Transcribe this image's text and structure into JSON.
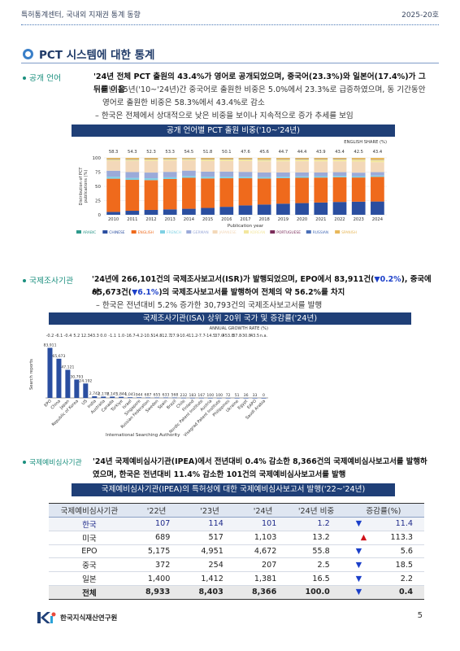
{
  "header": {
    "left": "특허통계센터, 국내외 지재권 통계 동향",
    "right": "2025-20호"
  },
  "section": {
    "title": "PCT 시스템에 대한 통계"
  },
  "lang": {
    "bullet": "공개 언어",
    "para": "'24년 전체 PCT 출원의 43.4%가 영어로 공개되었으며, 중국어(23.3%)와 일본어(17.4%)가 그 뒤를 이음",
    "sub1a": "– 지난 15년('10~'24년)간 중국어로 출원한 비중은 5.0%에서 23.3%로 급증하였으며, 동 기간동안",
    "sub1b": "영어로 출원한 비중은 58.3%에서 43.4%로 감소",
    "sub2": "– 한국은 전체에서 상대적으로 낮은 비중을 보이나 지속적으로 증가 추세를 보임",
    "banner": "공개 언어별 PCT 출원 비중('10~'24년)"
  },
  "chart1": {
    "type": "bar",
    "title": "ENGLISH SHARE (%)",
    "ylabel": "Distribution of PCT publications (%)",
    "xlabel": "Publication year",
    "yticks": [
      "0",
      "25",
      "50",
      "75",
      "100"
    ],
    "categories": [
      "2010",
      "2011",
      "2012",
      "2013",
      "2014",
      "2015",
      "2016",
      "2017",
      "2018",
      "2019",
      "2020",
      "2021",
      "2022",
      "2023",
      "2024"
    ],
    "english_share": [
      "58.3",
      "54.3",
      "52.3",
      "53.3",
      "54.5",
      "51.8",
      "50.1",
      "47.6",
      "45.6",
      "44.7",
      "44.4",
      "43.9",
      "43.4",
      "42.5",
      "43.4"
    ],
    "series": [
      {
        "name": "ARABIC",
        "color": "#2f9a8c",
        "values": [
          0.1,
          0.1,
          0.1,
          0.1,
          0.1,
          0.1,
          0.1,
          0.1,
          0.1,
          0.1,
          0.1,
          0.1,
          0.1,
          0.1,
          0.1
        ]
      },
      {
        "name": "CHINESE",
        "color": "#2a4ea0",
        "values": [
          5.0,
          7.0,
          8.5,
          9.5,
          10.5,
          12.0,
          14.0,
          16.5,
          18.0,
          19.5,
          20.5,
          21.5,
          22.5,
          23.0,
          23.3
        ]
      },
      {
        "name": "ENGLISH",
        "color": "#ef6a1c",
        "values": [
          58.3,
          54.3,
          52.3,
          53.3,
          54.5,
          51.8,
          50.1,
          47.6,
          45.6,
          44.7,
          44.4,
          43.9,
          43.4,
          42.5,
          43.4
        ]
      },
      {
        "name": "FRENCH",
        "color": "#7fd1e4",
        "values": [
          3.5,
          3.4,
          3.3,
          3.0,
          3.0,
          3.0,
          2.8,
          2.7,
          2.6,
          2.6,
          2.5,
          2.4,
          2.4,
          2.3,
          2.2
        ]
      },
      {
        "name": "GERMAN",
        "color": "#9baad9",
        "values": [
          10.5,
          10.3,
          10.0,
          9.5,
          9.5,
          9.0,
          9.0,
          8.5,
          8.0,
          7.5,
          7.0,
          6.5,
          6.5,
          6.2,
          6.0
        ]
      },
      {
        "name": "JAPANESE",
        "color": "#f3d8b9",
        "values": [
          17.5,
          19.5,
          20.5,
          20.0,
          18.0,
          18.5,
          18.5,
          19.0,
          19.5,
          19.5,
          19.5,
          19.5,
          19.0,
          19.5,
          17.4
        ]
      },
      {
        "name": "KOREAN",
        "color": "#f3e79f",
        "values": [
          2.0,
          2.2,
          2.4,
          2.5,
          2.5,
          2.7,
          2.8,
          2.9,
          3.0,
          3.1,
          3.2,
          3.3,
          3.4,
          3.5,
          4.0
        ]
      },
      {
        "name": "PORTUGUESE",
        "color": "#7b2c5a",
        "values": [
          0.1,
          0.1,
          0.1,
          0.1,
          0.1,
          0.1,
          0.1,
          0.1,
          0.1,
          0.1,
          0.1,
          0.1,
          0.1,
          0.1,
          0.1
        ]
      },
      {
        "name": "RUSSIAN",
        "color": "#4a6fb8",
        "values": [
          0.6,
          0.6,
          0.5,
          0.5,
          0.5,
          0.5,
          0.5,
          0.5,
          0.5,
          0.5,
          0.5,
          0.5,
          0.5,
          0.4,
          0.4
        ]
      },
      {
        "name": "SPANISH",
        "color": "#e8b85a",
        "values": [
          2.4,
          2.5,
          2.3,
          1.5,
          1.3,
          2.3,
          2.1,
          2.1,
          2.6,
          2.4,
          2.2,
          2.3,
          2.1,
          2.5,
          3.2
        ]
      }
    ]
  },
  "isa": {
    "bullet": "국제조사기관",
    "para1a": "'24년에 266,101건의 국제조사보고서(ISR)가 발행되었으며, EPO에서 83,911건(",
    "para1b": "▼0.2%",
    "para1c": "), 중국에서",
    "para2a": "65,673건(",
    "para2b": "▼6.1%",
    "para2c": ")의 국제조사보고서를 발행하여 전체의 약 56.2%를 차지",
    "sub": "– 한국은 전년대비 5.2% 증가한 30,793건의 국제조사보고서를 발행",
    "banner": "국제조사기관(ISA) 상위 20위 국가 및 증감률('24년)"
  },
  "chart2": {
    "type": "bar",
    "title": "ANNUAL GROWTH RATE (%)",
    "ylabel": "Search reports",
    "xlabel": "International Searching Authority",
    "categories": [
      "EPO",
      "China",
      "Japan",
      "Republic of Korea",
      "US",
      "India",
      "Australia",
      "Canada",
      "Türkiye",
      "Israel",
      "Singapore",
      "Russian Federation",
      "Sweden",
      "Spain",
      "Brazil",
      "Chile",
      "Finland",
      "Nordic Patent Institute",
      "Austria",
      "Visegrad Patent Institute",
      "Philippines",
      "Ukraine",
      "Egypt",
      "EAPO",
      "Saudi Arabia"
    ],
    "values": [
      83911,
      65673,
      47121,
      30793,
      24192,
      2742,
      2178,
      2145,
      1844,
      1041,
      944,
      687,
      655,
      633,
      568,
      232,
      183,
      167,
      100,
      100,
      72,
      51,
      36,
      33,
      0
    ],
    "value_labels": [
      "83,911",
      "65,673",
      "47,121",
      "30,793",
      "24,192",
      "2,742",
      "2,178",
      "2,145",
      "1,844",
      "1,041",
      "944",
      "687",
      "655",
      "633",
      "568",
      "232",
      "183",
      "167",
      "100",
      "100",
      "72",
      "51",
      "36",
      "33",
      "0"
    ],
    "growth": [
      "-0.2",
      "-6.1",
      "-0.4",
      "5.2",
      "12.3",
      "43.3",
      "0.0",
      "-1.1",
      "1.0",
      "-16.7",
      "-4.2",
      "-10.5",
      "-14.8",
      "-12.7",
      "27.9",
      "-10.4",
      "-11.2",
      "-7.7",
      "-14.5",
      "37.0",
      "453.8",
      "37.8",
      "-30.8",
      "43.5",
      "n.a."
    ],
    "color": "#2a4ea0"
  },
  "ipea": {
    "bullet": "국제예비심사기관",
    "para1": "'24년 국제예비심사기관(IPEA)에서 전년대비 0.4% 감소한 8,366건의 국제예비심사보고서를 발행하",
    "para2": "였으며, 한국은 전년대비 11.4% 감소한 101건의 국제예비심사보고서를 발행",
    "banner": "국제예비심사기관(IPEA)의 특허성에 대한 국제예비심사보고서 발행('22~'24년)"
  },
  "table": {
    "headers": [
      "국제예비심사기관",
      "'22년",
      "'23년",
      "'24년",
      "'24년 비중",
      "증감률(%)"
    ],
    "rows": [
      {
        "name": "한국",
        "y22": "107",
        "y23": "114",
        "y24": "101",
        "share": "1.2",
        "arrow": "▼",
        "dir": "down",
        "rate": "11.4"
      },
      {
        "name": "미국",
        "y22": "689",
        "y23": "517",
        "y24": "1,103",
        "share": "13.2",
        "arrow": "▲",
        "dir": "up",
        "rate": "113.3"
      },
      {
        "name": "EPO",
        "y22": "5,175",
        "y23": "4,951",
        "y24": "4,672",
        "share": "55.8",
        "arrow": "▼",
        "dir": "down",
        "rate": "5.6"
      },
      {
        "name": "중국",
        "y22": "372",
        "y23": "254",
        "y24": "207",
        "share": "2.5",
        "arrow": "▼",
        "dir": "down",
        "rate": "18.5"
      },
      {
        "name": "일본",
        "y22": "1,400",
        "y23": "1,412",
        "y24": "1,381",
        "share": "16.5",
        "arrow": "▼",
        "dir": "down",
        "rate": "2.2"
      },
      {
        "name": "전체",
        "y22": "8,933",
        "y23": "8,403",
        "y24": "8,366",
        "share": "100.0",
        "arrow": "▼",
        "dir": "down",
        "rate": "0.4"
      }
    ]
  },
  "footer": {
    "org": "한국지식재산연구원",
    "logo_text": "KIIP",
    "page": "5"
  }
}
